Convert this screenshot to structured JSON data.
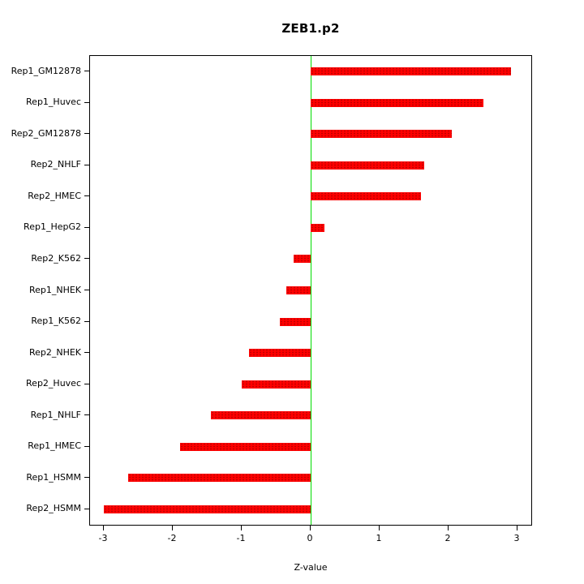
{
  "title": "ZEB1.p2",
  "chart_data": {
    "type": "bar",
    "orientation": "horizontal",
    "title": "ZEB1.p2",
    "xlabel": "Z-value",
    "categories": [
      "Rep1_GM12878",
      "Rep1_Huvec",
      "Rep2_GM12878",
      "Rep2_NHLF",
      "Rep2_HMEC",
      "Rep1_HepG2",
      "Rep2_K562",
      "Rep1_NHEK",
      "Rep1_K562",
      "Rep2_NHEK",
      "Rep2_Huvec",
      "Rep1_NHLF",
      "Rep1_HMEC",
      "Rep1_HSMM",
      "Rep2_HSMM"
    ],
    "values": [
      2.9,
      2.5,
      2.05,
      1.65,
      1.6,
      0.2,
      -0.25,
      -0.35,
      -0.45,
      -0.9,
      -1.0,
      -1.45,
      -1.9,
      -2.65,
      -3.0
    ],
    "xlim": [
      -3.2,
      3.2
    ],
    "xticks": [
      -3,
      -2,
      -1,
      0,
      1,
      2,
      3
    ],
    "bar_color": "#ff0000",
    "zero_line_color": "#00dd00",
    "grid": false,
    "legend": false
  }
}
